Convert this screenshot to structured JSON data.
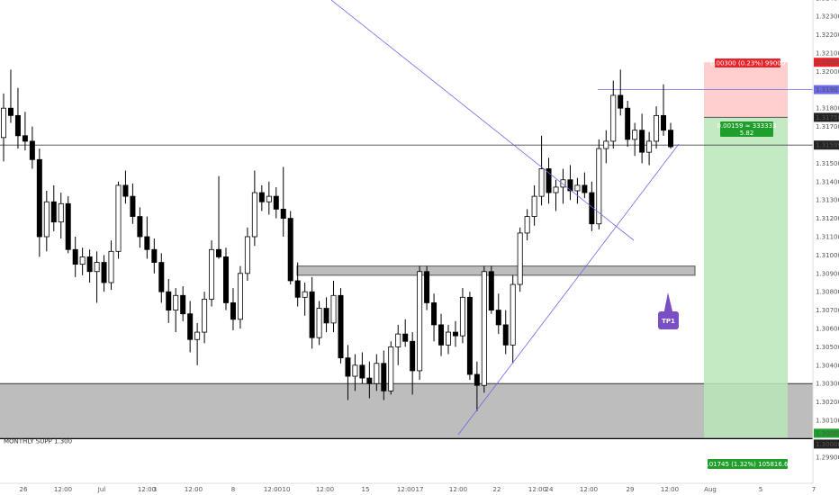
{
  "chart_data": {
    "type": "candlestick",
    "instrument_note": "",
    "ylim": [
      1.299,
      1.324
    ],
    "y_ticks": [
      "1.32400",
      "1.32300",
      "1.32200",
      "1.32100",
      "1.32000",
      "1.31900",
      "1.31800",
      "1.31700",
      "1.31600",
      "1.31500",
      "1.31400",
      "1.31300",
      "1.31200",
      "1.31100",
      "1.31000",
      "1.30900",
      "1.30800",
      "1.30700",
      "1.30600",
      "1.30500",
      "1.30400",
      "1.30300",
      "1.30200",
      "1.30100",
      "1.29900"
    ],
    "x_ticks": [
      "26",
      "12:00",
      "Jul",
      "12:00",
      "3",
      "12:00",
      "8",
      "12:00",
      "10",
      "12:00",
      "15",
      "12:00",
      "17",
      "12:00",
      "22",
      "12:00",
      "24",
      "12:00",
      "29",
      "12:00",
      "Aug",
      "5",
      "7"
    ],
    "price_labels": {
      "stop": "1.32050",
      "level_upper": "1.31901",
      "entry": "1.31750",
      "current": "1.31599",
      "target_top": "1.30005",
      "target_bottom": "1.30000"
    },
    "risk_box": {
      "text": "0.00300 (0.23%) 99000",
      "top": 1.3205,
      "bottom": 1.3175
    },
    "reward_box": {
      "text": "0.01745 (1.32%) 105816.66",
      "top": 1.3175,
      "bottom": 1.30005
    },
    "entry_box": {
      "line1": "0.00159 ≈ 333333",
      "line2": "5.82"
    },
    "zones": [
      {
        "name": "resistance-zone",
        "top": 1.3094,
        "bottom": 1.3089
      },
      {
        "name": "monthly-support-zone",
        "top": 1.303,
        "bottom": 1.3,
        "label": "MONTHLY SUPP 1.300"
      }
    ],
    "callout": {
      "text": "TP1"
    },
    "horizontal_line": 1.31599,
    "upper_line": 1.31901,
    "colors": {
      "up": "#ffffff",
      "down": "#000000",
      "risk": "#ffcfcf",
      "reward": "#b8e6b8",
      "stop_label": "#e8222b",
      "target_label": "#1f9e2c",
      "trendline": "#6a6ae8",
      "callout": "#7b4fc4"
    },
    "candles": [
      [
        1.3164,
        1.3188,
        1.3151,
        1.318
      ],
      [
        1.318,
        1.3201,
        1.3172,
        1.3176
      ],
      [
        1.3176,
        1.3191,
        1.3158,
        1.3165
      ],
      [
        1.3165,
        1.3178,
        1.3157,
        1.3162
      ],
      [
        1.3162,
        1.317,
        1.3147,
        1.3152
      ],
      [
        1.3152,
        1.3158,
        1.3099,
        1.311
      ],
      [
        1.311,
        1.3135,
        1.3102,
        1.3129
      ],
      [
        1.3129,
        1.3138,
        1.3113,
        1.3118
      ],
      [
        1.3118,
        1.3134,
        1.3109,
        1.3128
      ],
      [
        1.3128,
        1.3132,
        1.3101,
        1.3103
      ],
      [
        1.3103,
        1.311,
        1.3088,
        1.3095
      ],
      [
        1.3095,
        1.3104,
        1.3089,
        1.3099
      ],
      [
        1.3099,
        1.3103,
        1.3085,
        1.3091
      ],
      [
        1.3091,
        1.3102,
        1.3074,
        1.3096
      ],
      [
        1.3096,
        1.31,
        1.308,
        1.3085
      ],
      [
        1.3085,
        1.3108,
        1.3081,
        1.3102
      ],
      [
        1.3102,
        1.314,
        1.3098,
        1.3138
      ],
      [
        1.3138,
        1.3146,
        1.3128,
        1.3132
      ],
      [
        1.3132,
        1.3139,
        1.3117,
        1.3121
      ],
      [
        1.3121,
        1.3126,
        1.3104,
        1.311
      ],
      [
        1.311,
        1.3121,
        1.3098,
        1.3103
      ],
      [
        1.3103,
        1.3109,
        1.309,
        1.3096
      ],
      [
        1.3096,
        1.3101,
        1.3074,
        1.308
      ],
      [
        1.308,
        1.3087,
        1.3063,
        1.307
      ],
      [
        1.307,
        1.3082,
        1.3058,
        1.3078
      ],
      [
        1.3078,
        1.3083,
        1.3064,
        1.3068
      ],
      [
        1.3068,
        1.3075,
        1.3047,
        1.3054
      ],
      [
        1.3054,
        1.3063,
        1.304,
        1.3058
      ],
      [
        1.3058,
        1.308,
        1.3052,
        1.3076
      ],
      [
        1.3076,
        1.3108,
        1.3072,
        1.3103
      ],
      [
        1.3103,
        1.3143,
        1.3098,
        1.3099
      ],
      [
        1.3099,
        1.3104,
        1.307,
        1.3074
      ],
      [
        1.3074,
        1.3082,
        1.3059,
        1.3065
      ],
      [
        1.3065,
        1.3094,
        1.306,
        1.309
      ],
      [
        1.309,
        1.3115,
        1.3086,
        1.311
      ],
      [
        1.311,
        1.3146,
        1.3105,
        1.3134
      ],
      [
        1.3134,
        1.3138,
        1.3124,
        1.3129
      ],
      [
        1.3129,
        1.314,
        1.3122,
        1.3132
      ],
      [
        1.3132,
        1.3137,
        1.312,
        1.3125
      ],
      [
        1.3125,
        1.3148,
        1.311,
        1.312
      ],
      [
        1.312,
        1.3124,
        1.3084,
        1.3086
      ],
      [
        1.3086,
        1.3096,
        1.3072,
        1.3077
      ],
      [
        1.3077,
        1.3085,
        1.3067,
        1.308
      ],
      [
        1.308,
        1.3088,
        1.3049,
        1.3055
      ],
      [
        1.3055,
        1.3075,
        1.3051,
        1.3071
      ],
      [
        1.3071,
        1.3077,
        1.3058,
        1.3063
      ],
      [
        1.3063,
        1.3086,
        1.3058,
        1.3078
      ],
      [
        1.3078,
        1.3082,
        1.3041,
        1.3044
      ],
      [
        1.3044,
        1.3051,
        1.3021,
        1.3034
      ],
      [
        1.3034,
        1.3046,
        1.3026,
        1.304
      ],
      [
        1.304,
        1.3047,
        1.303,
        1.3033
      ],
      [
        1.3033,
        1.3042,
        1.3022,
        1.303
      ],
      [
        1.303,
        1.3046,
        1.3026,
        1.3041
      ],
      [
        1.3041,
        1.3048,
        1.3021,
        1.3026
      ],
      [
        1.3026,
        1.3053,
        1.3024,
        1.305
      ],
      [
        1.305,
        1.3062,
        1.304,
        1.3057
      ],
      [
        1.3057,
        1.3065,
        1.305,
        1.3053
      ],
      [
        1.3053,
        1.3058,
        1.3024,
        1.3037
      ],
      [
        1.3037,
        1.3094,
        1.3032,
        1.3091
      ],
      [
        1.3091,
        1.3094,
        1.307,
        1.3074
      ],
      [
        1.3074,
        1.3079,
        1.3053,
        1.3062
      ],
      [
        1.3062,
        1.3068,
        1.3045,
        1.3051
      ],
      [
        1.3051,
        1.3062,
        1.3046,
        1.3058
      ],
      [
        1.3058,
        1.3064,
        1.305,
        1.3056
      ],
      [
        1.3056,
        1.3082,
        1.3052,
        1.3077
      ],
      [
        1.3077,
        1.308,
        1.3032,
        1.3035
      ],
      [
        1.3035,
        1.3042,
        1.3015,
        1.3029
      ],
      [
        1.3029,
        1.3094,
        1.3025,
        1.3091
      ],
      [
        1.3091,
        1.3094,
        1.3068,
        1.307
      ],
      [
        1.307,
        1.3079,
        1.3057,
        1.3062
      ],
      [
        1.3062,
        1.307,
        1.3046,
        1.3051
      ],
      [
        1.3051,
        1.3089,
        1.3041,
        1.3084
      ],
      [
        1.3084,
        1.3115,
        1.308,
        1.3112
      ],
      [
        1.3112,
        1.3125,
        1.3108,
        1.3121
      ],
      [
        1.3121,
        1.3138,
        1.3116,
        1.3132
      ],
      [
        1.3132,
        1.3165,
        1.3127,
        1.3147
      ],
      [
        1.3147,
        1.3153,
        1.3128,
        1.3134
      ],
      [
        1.3134,
        1.3141,
        1.3124,
        1.3137
      ],
      [
        1.3137,
        1.3147,
        1.3128,
        1.3141
      ],
      [
        1.3141,
        1.3149,
        1.313,
        1.3135
      ],
      [
        1.3135,
        1.3142,
        1.3128,
        1.3138
      ],
      [
        1.3138,
        1.3145,
        1.3131,
        1.3134
      ],
      [
        1.3134,
        1.314,
        1.3113,
        1.3117
      ],
      [
        1.3117,
        1.3163,
        1.3114,
        1.3158
      ],
      [
        1.3158,
        1.3168,
        1.315,
        1.3162
      ],
      [
        1.3162,
        1.3195,
        1.3158,
        1.3187
      ],
      [
        1.3187,
        1.3201,
        1.3176,
        1.318
      ],
      [
        1.318,
        1.3184,
        1.3159,
        1.3163
      ],
      [
        1.3163,
        1.3172,
        1.3154,
        1.3168
      ],
      [
        1.3168,
        1.3177,
        1.315,
        1.3156
      ],
      [
        1.3156,
        1.3167,
        1.3149,
        1.3162
      ],
      [
        1.3162,
        1.3181,
        1.3158,
        1.3176
      ],
      [
        1.3176,
        1.3193,
        1.3165,
        1.3168
      ],
      [
        1.3168,
        1.3172,
        1.3158,
        1.3159
      ]
    ]
  },
  "annotations": {
    "risk_text": "0.00300 (0.23%) 99000",
    "reward_text": "0.01745 (1.32%) 105816.66",
    "entry_line1": "0.00159 ≈ 333333",
    "entry_line2": "5.82",
    "zone_label": "MONTHLY SUPP 1.300",
    "callout": "TP1"
  }
}
